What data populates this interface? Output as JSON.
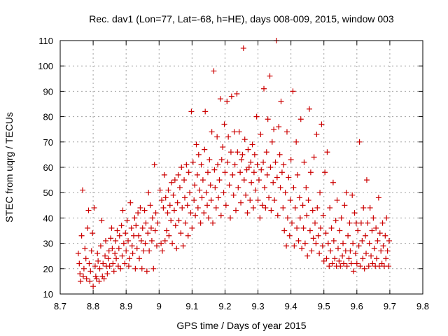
{
  "chart_data": {
    "type": "scatter",
    "title": "Rec. dav1 (Lon=77, Lat=-68, h=HE), days 008-009, 2015, window 003",
    "xlabel": "GPS time / Days of year 2015",
    "ylabel": "STEC from uqrg / TECUs",
    "xlim": [
      8.7,
      9.8
    ],
    "ylim": [
      10,
      110
    ],
    "xticks": [
      8.7,
      8.8,
      8.9,
      9.0,
      9.1,
      9.2,
      9.3,
      9.4,
      9.5,
      9.6,
      9.7,
      9.8
    ],
    "xtick_labels": [
      "8.7",
      "8.8",
      "8.9",
      "9",
      "9.1",
      "9.2",
      "9.3",
      "9.4",
      "9.5",
      "9.6",
      "9.7",
      "9.8"
    ],
    "yticks": [
      10,
      20,
      30,
      40,
      50,
      60,
      70,
      80,
      90,
      100,
      110
    ],
    "ytick_labels": [
      "10",
      "20",
      "30",
      "40",
      "50",
      "60",
      "70",
      "80",
      "90",
      "100",
      "110"
    ],
    "grid": true,
    "legend": "none",
    "marker": "+",
    "color": "#cc0000",
    "points": [
      [
        8.755,
        26
      ],
      [
        8.758,
        22
      ],
      [
        8.76,
        18
      ],
      [
        8.762,
        15
      ],
      [
        8.765,
        33
      ],
      [
        8.768,
        51
      ],
      [
        8.77,
        17
      ],
      [
        8.772,
        20
      ],
      [
        8.775,
        28
      ],
      [
        8.778,
        24
      ],
      [
        8.78,
        16
      ],
      [
        8.783,
        36
      ],
      [
        8.786,
        43
      ],
      [
        8.788,
        22
      ],
      [
        8.79,
        15
      ],
      [
        8.792,
        19
      ],
      [
        8.795,
        27
      ],
      [
        8.798,
        34
      ],
      [
        8.8,
        13
      ],
      [
        8.803,
        44
      ],
      [
        8.806,
        21
      ],
      [
        8.808,
        17
      ],
      [
        8.81,
        16
      ],
      [
        8.813,
        26
      ],
      [
        8.815,
        23
      ],
      [
        8.818,
        15
      ],
      [
        8.82,
        20
      ],
      [
        8.823,
        29
      ],
      [
        8.826,
        39
      ],
      [
        8.828,
        17
      ],
      [
        8.83,
        22
      ],
      [
        8.833,
        16
      ],
      [
        8.836,
        25
      ],
      [
        8.838,
        31
      ],
      [
        8.84,
        21
      ],
      [
        8.843,
        18
      ],
      [
        8.846,
        24
      ],
      [
        8.848,
        27
      ],
      [
        8.85,
        21
      ],
      [
        8.853,
        32
      ],
      [
        8.856,
        36
      ],
      [
        8.858,
        28
      ],
      [
        8.86,
        22
      ],
      [
        8.863,
        19
      ],
      [
        8.866,
        26
      ],
      [
        8.868,
        31
      ],
      [
        8.87,
        24
      ],
      [
        8.873,
        35
      ],
      [
        8.876,
        21
      ],
      [
        8.878,
        28
      ],
      [
        8.88,
        33
      ],
      [
        8.883,
        20
      ],
      [
        8.886,
        37
      ],
      [
        8.888,
        25
      ],
      [
        8.89,
        43
      ],
      [
        8.893,
        30
      ],
      [
        8.896,
        22
      ],
      [
        8.898,
        34
      ],
      [
        8.9,
        27
      ],
      [
        8.903,
        39
      ],
      [
        8.906,
        31
      ],
      [
        8.908,
        21
      ],
      [
        8.91,
        24
      ],
      [
        8.913,
        46
      ],
      [
        8.916,
        36
      ],
      [
        8.918,
        29
      ],
      [
        8.92,
        26
      ],
      [
        8.923,
        33
      ],
      [
        8.926,
        40
      ],
      [
        8.928,
        20
      ],
      [
        8.93,
        37
      ],
      [
        8.933,
        28
      ],
      [
        8.936,
        42
      ],
      [
        8.938,
        33
      ],
      [
        8.94,
        24
      ],
      [
        8.943,
        44
      ],
      [
        8.946,
        31
      ],
      [
        8.948,
        20
      ],
      [
        8.95,
        36
      ],
      [
        8.953,
        27
      ],
      [
        8.956,
        43
      ],
      [
        8.958,
        30
      ],
      [
        8.96,
        38
      ],
      [
        8.963,
        19
      ],
      [
        8.966,
        34
      ],
      [
        8.968,
        50
      ],
      [
        8.97,
        27
      ],
      [
        8.973,
        45
      ],
      [
        8.976,
        36
      ],
      [
        8.978,
        31
      ],
      [
        8.98,
        40
      ],
      [
        8.983,
        20
      ],
      [
        8.986,
        61
      ],
      [
        8.988,
        35
      ],
      [
        8.99,
        42
      ],
      [
        8.993,
        29
      ],
      [
        8.996,
        38
      ],
      [
        9.003,
        51
      ],
      [
        9.006,
        30
      ],
      [
        9.008,
        47
      ],
      [
        9.01,
        27
      ],
      [
        9.013,
        44
      ],
      [
        9.016,
        57
      ],
      [
        9.018,
        31
      ],
      [
        9.02,
        48
      ],
      [
        9.023,
        35
      ],
      [
        9.026,
        42
      ],
      [
        9.028,
        51
      ],
      [
        9.03,
        33
      ],
      [
        9.033,
        45
      ],
      [
        9.036,
        39
      ],
      [
        9.038,
        54
      ],
      [
        9.04,
        30
      ],
      [
        9.043,
        49
      ],
      [
        9.046,
        43
      ],
      [
        9.048,
        55
      ],
      [
        9.05,
        37
      ],
      [
        9.053,
        28
      ],
      [
        9.056,
        46
      ],
      [
        9.058,
        57
      ],
      [
        9.06,
        39
      ],
      [
        9.063,
        52
      ],
      [
        9.066,
        34
      ],
      [
        9.068,
        60
      ],
      [
        9.07,
        44
      ],
      [
        9.073,
        29
      ],
      [
        9.076,
        55
      ],
      [
        9.078,
        48
      ],
      [
        9.08,
        38
      ],
      [
        9.083,
        61
      ],
      [
        9.086,
        45
      ],
      [
        9.088,
        33
      ],
      [
        9.09,
        58
      ],
      [
        9.093,
        50
      ],
      [
        9.096,
        42
      ],
      [
        9.098,
        82
      ],
      [
        9.1,
        36
      ],
      [
        9.103,
        62
      ],
      [
        9.106,
        47
      ],
      [
        9.108,
        53
      ],
      [
        9.11,
        41
      ],
      [
        9.113,
        69
      ],
      [
        9.116,
        57
      ],
      [
        9.118,
        44
      ],
      [
        9.12,
        65
      ],
      [
        9.123,
        51
      ],
      [
        9.126,
        38
      ],
      [
        9.128,
        61
      ],
      [
        9.13,
        48
      ],
      [
        9.133,
        55
      ],
      [
        9.136,
        42
      ],
      [
        9.138,
        67
      ],
      [
        9.14,
        82
      ],
      [
        9.143,
        50
      ],
      [
        9.146,
        45
      ],
      [
        9.148,
        58
      ],
      [
        9.15,
        40
      ],
      [
        9.153,
        63
      ],
      [
        9.156,
        53
      ],
      [
        9.158,
        47
      ],
      [
        9.16,
        74
      ],
      [
        9.163,
        38
      ],
      [
        9.166,
        98
      ],
      [
        9.168,
        59
      ],
      [
        9.17,
        52
      ],
      [
        9.173,
        44
      ],
      [
        9.176,
        72
      ],
      [
        9.178,
        61
      ],
      [
        9.18,
        48
      ],
      [
        9.183,
        55
      ],
      [
        9.186,
        87
      ],
      [
        9.188,
        41
      ],
      [
        9.19,
        63
      ],
      [
        9.193,
        68
      ],
      [
        9.196,
        50
      ],
      [
        9.198,
        77
      ],
      [
        9.2,
        58
      ],
      [
        9.203,
        45
      ],
      [
        9.206,
        86
      ],
      [
        9.208,
        62
      ],
      [
        9.21,
        72
      ],
      [
        9.213,
        53
      ],
      [
        9.216,
        40
      ],
      [
        9.218,
        66
      ],
      [
        9.22,
        88
      ],
      [
        9.223,
        57
      ],
      [
        9.226,
        49
      ],
      [
        9.228,
        74
      ],
      [
        9.23,
        61
      ],
      [
        9.233,
        43
      ],
      [
        9.236,
        89
      ],
      [
        9.238,
        66
      ],
      [
        9.24,
        52
      ],
      [
        9.243,
        74
      ],
      [
        9.246,
        58
      ],
      [
        9.248,
        46
      ],
      [
        9.25,
        63
      ],
      [
        9.253,
        65
      ],
      [
        9.256,
        107
      ],
      [
        9.258,
        55
      ],
      [
        9.26,
        71
      ],
      [
        9.263,
        49
      ],
      [
        9.266,
        59
      ],
      [
        9.268,
        42
      ],
      [
        9.27,
        67
      ],
      [
        9.273,
        60
      ],
      [
        9.276,
        47
      ],
      [
        9.278,
        62
      ],
      [
        9.28,
        54
      ],
      [
        9.283,
        69
      ],
      [
        9.286,
        44
      ],
      [
        9.288,
        58
      ],
      [
        9.29,
        65
      ],
      [
        9.293,
        51
      ],
      [
        9.296,
        80
      ],
      [
        9.298,
        61
      ],
      [
        9.3,
        47
      ],
      [
        9.303,
        55
      ],
      [
        9.306,
        40
      ],
      [
        9.308,
        73
      ],
      [
        9.31,
        59
      ],
      [
        9.313,
        45
      ],
      [
        9.316,
        62
      ],
      [
        9.318,
        91
      ],
      [
        9.32,
        52
      ],
      [
        9.323,
        44
      ],
      [
        9.326,
        66
      ],
      [
        9.328,
        57
      ],
      [
        9.33,
        79
      ],
      [
        9.333,
        48
      ],
      [
        9.336,
        96
      ],
      [
        9.338,
        60
      ],
      [
        9.34,
        43
      ],
      [
        9.343,
        70
      ],
      [
        9.346,
        54
      ],
      [
        9.348,
        75
      ],
      [
        9.35,
        47
      ],
      [
        9.353,
        62
      ],
      [
        9.356,
        110
      ],
      [
        9.358,
        56
      ],
      [
        9.36,
        41
      ],
      [
        9.363,
        76
      ],
      [
        9.366,
        65
      ],
      [
        9.368,
        52
      ],
      [
        9.37,
        86
      ],
      [
        9.373,
        58
      ],
      [
        9.376,
        44
      ],
      [
        9.378,
        61
      ],
      [
        9.38,
        35
      ],
      [
        9.383,
        50
      ],
      [
        9.386,
        29
      ],
      [
        9.388,
        74
      ],
      [
        9.39,
        40
      ],
      [
        9.393,
        56
      ],
      [
        9.396,
        33
      ],
      [
        9.398,
        47
      ],
      [
        9.4,
        63
      ],
      [
        9.403,
        38
      ],
      [
        9.406,
        90
      ],
      [
        9.408,
        52
      ],
      [
        9.41,
        29
      ],
      [
        9.413,
        44
      ],
      [
        9.416,
        70
      ],
      [
        9.418,
        36
      ],
      [
        9.42,
        57
      ],
      [
        9.423,
        31
      ],
      [
        9.426,
        48
      ],
      [
        9.428,
        40
      ],
      [
        9.43,
        79
      ],
      [
        9.433,
        28
      ],
      [
        9.436,
        45
      ],
      [
        9.438,
        36
      ],
      [
        9.44,
        62
      ],
      [
        9.443,
        30
      ],
      [
        9.446,
        52
      ],
      [
        9.448,
        41
      ],
      [
        9.45,
        25
      ],
      [
        9.453,
        47
      ],
      [
        9.456,
        83
      ],
      [
        9.458,
        35
      ],
      [
        9.46,
        58
      ],
      [
        9.463,
        27
      ],
      [
        9.466,
        43
      ],
      [
        9.468,
        32
      ],
      [
        9.47,
        64
      ],
      [
        9.473,
        38
      ],
      [
        9.476,
        30
      ],
      [
        9.478,
        73
      ],
      [
        9.48,
        44
      ],
      [
        9.483,
        33
      ],
      [
        9.486,
        26
      ],
      [
        9.488,
        50
      ],
      [
        9.49,
        36
      ],
      [
        9.493,
        77
      ],
      [
        9.496,
        29
      ],
      [
        9.498,
        41
      ],
      [
        9.5,
        23
      ],
      [
        9.503,
        58
      ],
      [
        9.506,
        34
      ],
      [
        9.508,
        24
      ],
      [
        9.51,
        66
      ],
      [
        9.513,
        30
      ],
      [
        9.516,
        21
      ],
      [
        9.518,
        44
      ],
      [
        9.52,
        27
      ],
      [
        9.523,
        36
      ],
      [
        9.526,
        22
      ],
      [
        9.528,
        54
      ],
      [
        9.53,
        31
      ],
      [
        9.533,
        24
      ],
      [
        9.536,
        39
      ],
      [
        9.538,
        21
      ],
      [
        9.54,
        47
      ],
      [
        9.543,
        28
      ],
      [
        9.546,
        23
      ],
      [
        9.548,
        35
      ],
      [
        9.55,
        21
      ],
      [
        9.553,
        40
      ],
      [
        9.556,
        25
      ],
      [
        9.558,
        30
      ],
      [
        9.56,
        22
      ],
      [
        9.563,
        45
      ],
      [
        9.566,
        27
      ],
      [
        9.568,
        50
      ],
      [
        9.57,
        21
      ],
      [
        9.573,
        33
      ],
      [
        9.576,
        24
      ],
      [
        9.578,
        38
      ],
      [
        9.58,
        27
      ],
      [
        9.583,
        22
      ],
      [
        9.586,
        49
      ],
      [
        9.588,
        30
      ],
      [
        9.59,
        19
      ],
      [
        9.593,
        42
      ],
      [
        9.596,
        26
      ],
      [
        9.598,
        38
      ],
      [
        9.6,
        22
      ],
      [
        9.603,
        35
      ],
      [
        9.606,
        29
      ],
      [
        9.608,
        70
      ],
      [
        9.61,
        21
      ],
      [
        9.613,
        38
      ],
      [
        9.616,
        31
      ],
      [
        9.618,
        24
      ],
      [
        9.62,
        44
      ],
      [
        9.623,
        20
      ],
      [
        9.626,
        33
      ],
      [
        9.628,
        26
      ],
      [
        9.63,
        55
      ],
      [
        9.633,
        38
      ],
      [
        9.636,
        21
      ],
      [
        9.638,
        30
      ],
      [
        9.64,
        44
      ],
      [
        9.643,
        25
      ],
      [
        9.646,
        35
      ],
      [
        9.648,
        22
      ],
      [
        9.65,
        40
      ],
      [
        9.653,
        28
      ],
      [
        9.656,
        21
      ],
      [
        9.658,
        36
      ],
      [
        9.66,
        24
      ],
      [
        9.663,
        31
      ],
      [
        9.666,
        48
      ],
      [
        9.668,
        21
      ],
      [
        9.67,
        34
      ],
      [
        9.673,
        27
      ],
      [
        9.676,
        22
      ],
      [
        9.678,
        38
      ],
      [
        9.68,
        29
      ],
      [
        9.683,
        21
      ],
      [
        9.686,
        33
      ],
      [
        9.688,
        24
      ],
      [
        9.69,
        40
      ],
      [
        9.693,
        27
      ],
      [
        9.696,
        21
      ],
      [
        9.698,
        31
      ]
    ]
  }
}
